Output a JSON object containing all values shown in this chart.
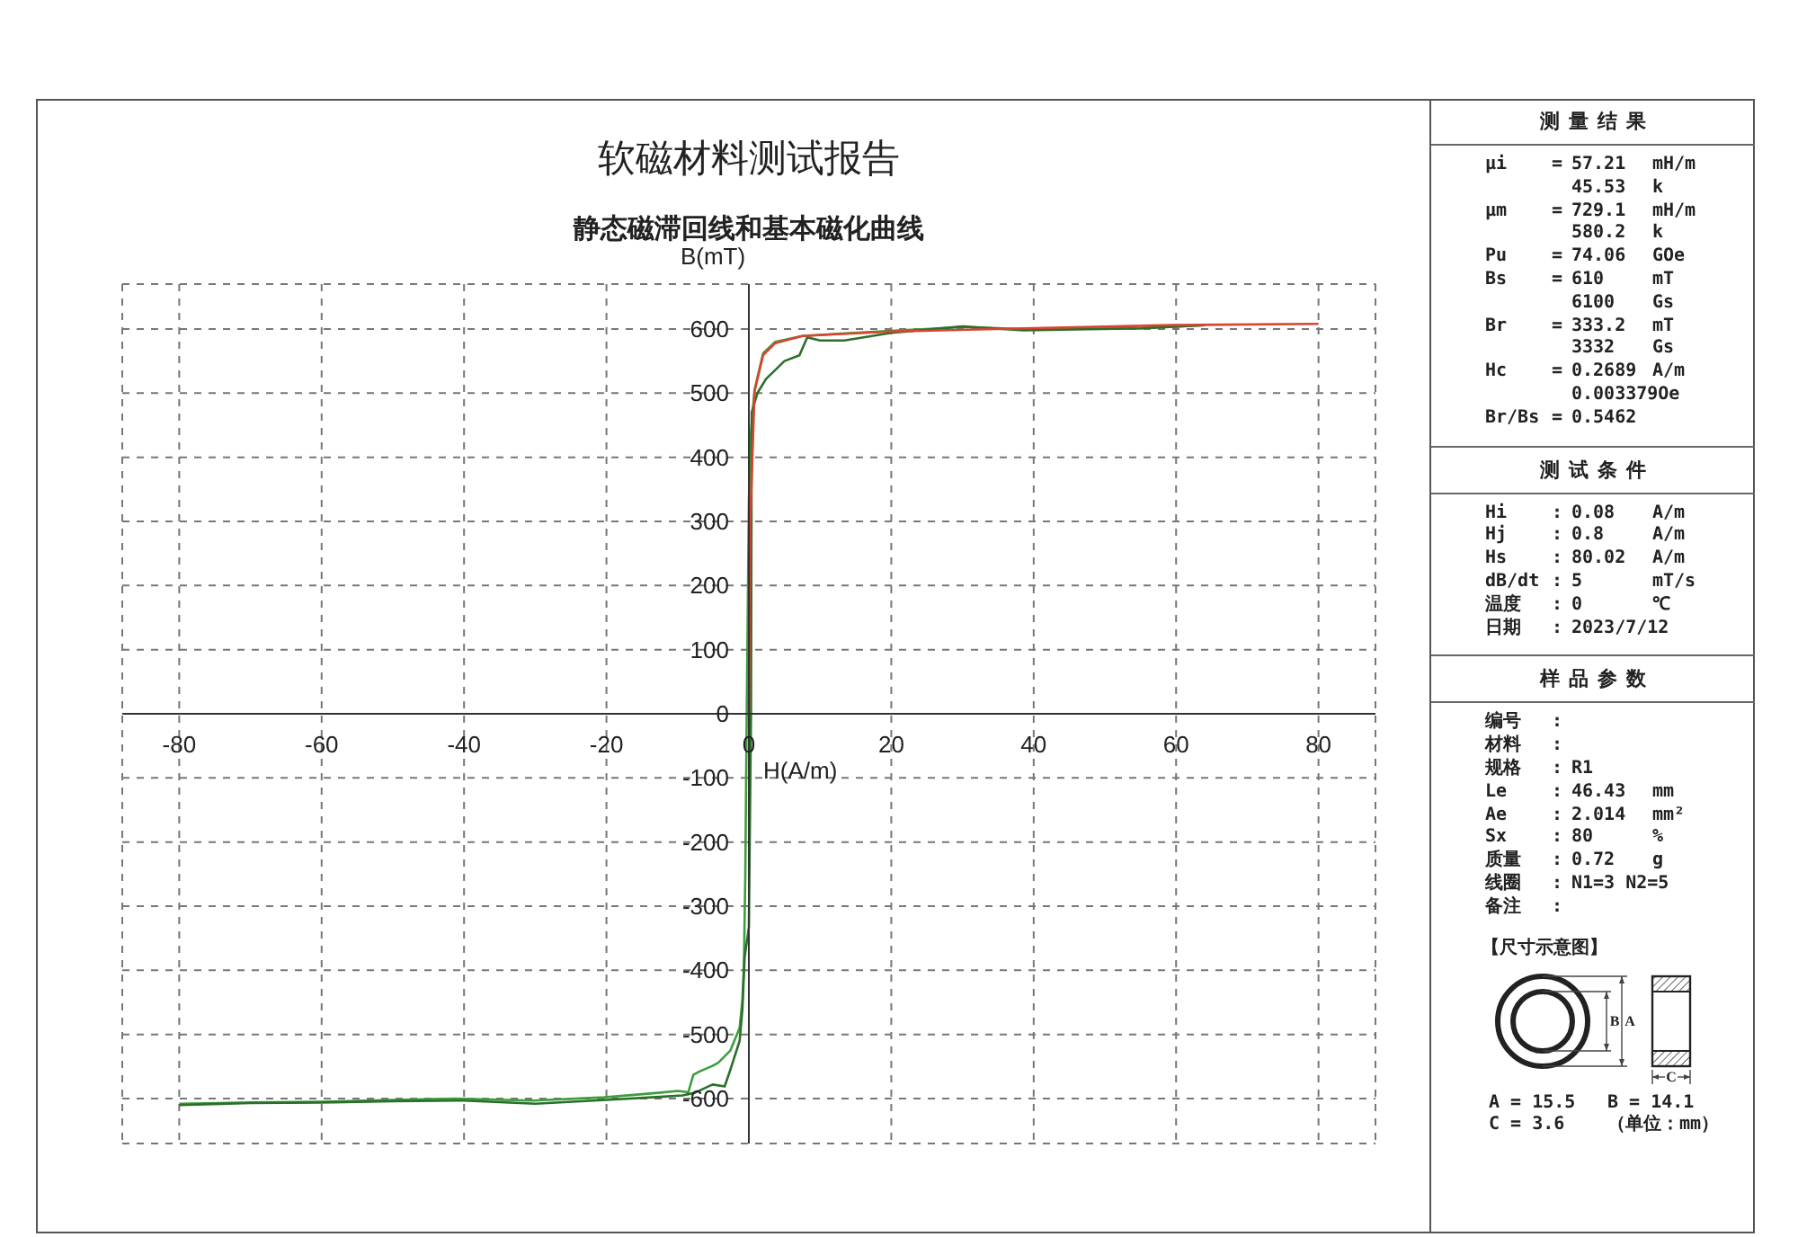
{
  "chart_data": [
    {
      "type": "line",
      "title": "软磁材料测试报告",
      "subtitle": "静态磁滞回线和基本磁化曲线",
      "xlabel": "H(A/m)",
      "ylabel": "B(mT)",
      "xlim": [
        -88,
        88
      ],
      "xticks": [
        -80,
        -60,
        -40,
        -20,
        0,
        20,
        40,
        60,
        80
      ],
      "ylim": [
        -670,
        670
      ],
      "yticks": [
        -600,
        -500,
        -400,
        -300,
        -200,
        -100,
        0,
        100,
        200,
        300,
        400,
        500,
        600
      ],
      "grid": true,
      "series": [
        {
          "color": "#3d9e3d",
          "x": [
            64,
            55,
            38.6,
            30,
            20,
            13,
            7.5,
            3.7,
            2,
            0.8,
            0.3,
            0,
            -0.3,
            -0.5,
            -0.7,
            -0.9,
            -1.3,
            -2.6,
            -4.3,
            -5.1,
            -7,
            -7.8,
            -8.5,
            -10,
            -12.7,
            -20.3,
            -30.4,
            -41.3,
            -50,
            -59.8,
            -70,
            -80
          ],
          "values": [
            606,
            601,
            600,
            603,
            597,
            593,
            589,
            580,
            562,
            505,
            440,
            333,
            0,
            -250,
            -395,
            -445,
            -490,
            -525,
            -544,
            -549,
            -558,
            -563,
            -590,
            -588,
            -591,
            -598,
            -603,
            -600,
            -602,
            -605,
            -606,
            -608
          ]
        },
        {
          "color": "#2b6f2b",
          "x": [
            -80,
            -70,
            -60,
            -50,
            -40,
            -30,
            -20,
            -12,
            -9.3,
            -7.6,
            -5.1,
            -3.4,
            -2.6,
            -1.3,
            -0.9,
            -0.6,
            0,
            0.3,
            0.4,
            1.2,
            2.4,
            5,
            7.1,
            8.2,
            10,
            13.4,
            20,
            30,
            38.6,
            55,
            64
          ],
          "values": [
            -610,
            -607,
            -606,
            -604,
            -603,
            -608,
            -602,
            -597,
            -595,
            -591,
            -578,
            -581,
            -555,
            -510,
            -460,
            -380,
            -333,
            0,
            470,
            500,
            522,
            550,
            559,
            587,
            582,
            582,
            594,
            604,
            598,
            601,
            606
          ]
        },
        {
          "color": "#d9432f",
          "x": [
            0,
            0.2,
            0.8,
            2,
            3.7,
            7.5,
            20,
            38.6,
            59.6,
            80
          ],
          "values": [
            0,
            300,
            503,
            559,
            578,
            589,
            596,
            601,
            606,
            608
          ]
        }
      ]
    },
    {
      "type": "other",
      "title": "测量结果",
      "annotations": [
        "μi\t=\t57.21\tmH/m",
        "\t\t45.53\tk",
        "μm\t=\t729.1\tmH/m",
        "\t\t580.2\tk",
        "Pu\t=\t74.06\tGOe",
        "Bs\t=\t610\tmT",
        "\t\t6100\tGs",
        "Br\t=\t333.2\tmT",
        "\t\t3332\tGs",
        "Hc\t=\t0.2689\tA/m",
        "\t\t0.003379Oe",
        "Br/Bs\t=\t0.5462"
      ]
    },
    {
      "type": "other",
      "title": "测试条件",
      "annotations": [
        "Hi\t:\t0.08\tA/m",
        "Hj\t:\t0.8\tA/m",
        "Hs\t:\t80.02\tA/m",
        "dB/dt\t:\t5\tmT/s",
        "温度\t:\t0\t℃",
        "日期\t:\t2023/7/12"
      ]
    },
    {
      "type": "other",
      "title": "样品参数",
      "annotations": [
        "编号\t:",
        "材料\t:",
        "规格\t:\tR1",
        "Le\t:\t46.43\tmm",
        "Ae\t:\t2.014\tmm²",
        "Sx\t:\t80\t%",
        "质量\t:\t0.72\tg",
        "线圈\t:\tN1=3 N2=5",
        "备注\t:"
      ]
    },
    {
      "type": "other",
      "title": "【尺寸示意图】",
      "annotations": [
        "B",
        "A",
        "C",
        "A = 15.5\tB = 14.1",
        "C = 3.6\t（单位：mm）"
      ]
    }
  ]
}
